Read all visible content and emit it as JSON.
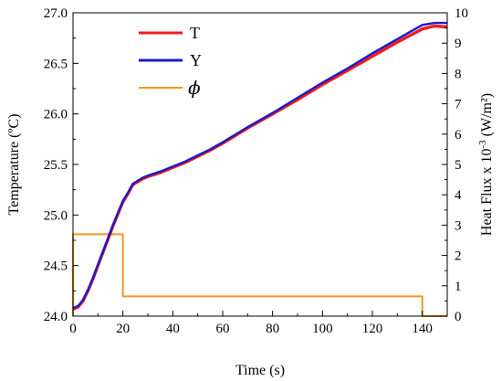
{
  "chart_data": {
    "type": "line",
    "title": "",
    "xlabel": "Time (s)",
    "ylabel_left": "Temperature (ºC)",
    "ylabel_right_prefix": "Heat Flux x 10",
    "ylabel_right_exp": "-3",
    "ylabel_right_suffix": " (W/m²)",
    "xlim": [
      0,
      150
    ],
    "ylim_left": [
      24.0,
      27.0
    ],
    "ylim_right": [
      0,
      10
    ],
    "grid": false,
    "legend_position": "top-left",
    "x_ticks": [
      "0",
      "20",
      "40",
      "60",
      "80",
      "100",
      "120",
      "140"
    ],
    "y_left_ticks": [
      "24.0",
      "24.5",
      "25.0",
      "25.5",
      "26.0",
      "26.5",
      "27.0"
    ],
    "y_right_ticks": [
      "0",
      "1",
      "2",
      "3",
      "4",
      "5",
      "6",
      "7",
      "8",
      "9",
      "10"
    ],
    "series": [
      {
        "name": "T",
        "axis": "left",
        "color": "#ee1c1c",
        "x": [
          0,
          2,
          4,
          6,
          8,
          10,
          12,
          14,
          16,
          18,
          20,
          22,
          24,
          26,
          28,
          30,
          35,
          40,
          45,
          50,
          55,
          60,
          70,
          80,
          90,
          100,
          110,
          120,
          130,
          140,
          145,
          150
        ],
        "y": [
          24.07,
          24.09,
          24.15,
          24.25,
          24.37,
          24.5,
          24.63,
          24.76,
          24.89,
          25.01,
          25.13,
          25.21,
          25.3,
          25.33,
          25.36,
          25.38,
          25.42,
          25.47,
          25.52,
          25.58,
          25.64,
          25.71,
          25.86,
          26.0,
          26.14,
          26.29,
          26.43,
          26.57,
          26.71,
          26.84,
          26.87,
          26.86
        ]
      },
      {
        "name": "Y",
        "axis": "left",
        "color": "#1a1acc",
        "x": [
          0,
          2,
          4,
          6,
          8,
          10,
          12,
          14,
          16,
          18,
          20,
          22,
          24,
          26,
          28,
          30,
          35,
          40,
          45,
          50,
          55,
          60,
          70,
          80,
          90,
          100,
          110,
          120,
          130,
          140,
          145,
          150
        ],
        "y": [
          24.08,
          24.1,
          24.16,
          24.26,
          24.38,
          24.51,
          24.64,
          24.77,
          24.9,
          25.02,
          25.14,
          25.22,
          25.31,
          25.34,
          25.37,
          25.39,
          25.43,
          25.48,
          25.53,
          25.59,
          25.65,
          25.72,
          25.87,
          26.01,
          26.16,
          26.31,
          26.45,
          26.6,
          26.74,
          26.88,
          26.9,
          26.9
        ]
      },
      {
        "name": "ϕ",
        "axis": "right",
        "color": "#f7941d",
        "x": [
          0,
          0,
          20,
          20,
          140,
          140,
          150
        ],
        "y": [
          0,
          2.7,
          2.7,
          0.65,
          0.65,
          0,
          0
        ]
      }
    ]
  }
}
